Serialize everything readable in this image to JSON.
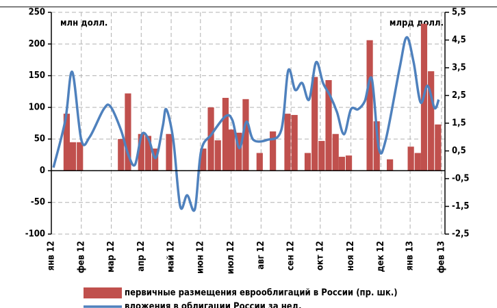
{
  "chart_data": {
    "type": "bar",
    "annotations": [
      "млн долл.",
      "млрд долл."
    ],
    "xlim": [
      0,
      56.5
    ],
    "xticks": [
      {
        "value": 0,
        "label": "янв 12"
      },
      {
        "value": 4.3,
        "label": "фев 12"
      },
      {
        "value": 8.6,
        "label": "мар 12"
      },
      {
        "value": 12.9,
        "label": "апр 12"
      },
      {
        "value": 17.2,
        "label": "май 12"
      },
      {
        "value": 21.4,
        "label": "июн 12"
      },
      {
        "value": 25.8,
        "label": "июл 12"
      },
      {
        "value": 30.1,
        "label": "авг 12"
      },
      {
        "value": 34.4,
        "label": "сен 12"
      },
      {
        "value": 38.6,
        "label": "окт 12"
      },
      {
        "value": 43,
        "label": "ноя 12"
      },
      {
        "value": 47.3,
        "label": "дек 12"
      },
      {
        "value": 51.5,
        "label": "янв 13"
      },
      {
        "value": 56,
        "label": "фев 13"
      }
    ],
    "ylim": [
      -100,
      250
    ],
    "yticks": [
      -100,
      -50,
      0,
      50,
      100,
      150,
      200,
      250
    ],
    "y2lim": [
      -2.5,
      5.5
    ],
    "y2ticks": [
      {
        "value": -2.5,
        "label": "-2,5"
      },
      {
        "value": -1.5,
        "label": "-1,5"
      },
      {
        "value": -0.5,
        "label": "-0,5"
      },
      {
        "value": 0.5,
        "label": "0,5"
      },
      {
        "value": 1.5,
        "label": "1,5"
      },
      {
        "value": 2.5,
        "label": "2,5"
      },
      {
        "value": 3.5,
        "label": "3,5"
      },
      {
        "value": 4.5,
        "label": "4,5"
      },
      {
        "value": 5.5,
        "label": "5,5"
      }
    ],
    "grid": true,
    "series": [
      {
        "name": "первичные размещения еврооблигаций в России (пр. шк.)",
        "color": "#c0504d",
        "x": [
          2.2,
          3.1,
          4.1,
          10,
          11,
          12.9,
          13.9,
          14.9,
          16.9,
          21.8,
          22.9,
          23.9,
          25,
          25.9,
          26.9,
          27.9,
          29.9,
          31.8,
          33.9,
          34.9,
          36.8,
          37.8,
          38.8,
          39.8,
          40.8,
          41.7,
          42.7,
          45.7,
          46.7,
          48.6,
          51.6,
          52.6,
          53.5,
          54.5,
          55.5
        ],
        "values": [
          90,
          45,
          45,
          50,
          122,
          58,
          55,
          35,
          58,
          35,
          100,
          48,
          115,
          65,
          60,
          113,
          28,
          62,
          90,
          88,
          28,
          148,
          47,
          143,
          58,
          22,
          24,
          206,
          78,
          18,
          38,
          28,
          232,
          157,
          73
        ]
      },
      {
        "name": "вложения в облигации России за нед.",
        "color": "#4f81bd",
        "type": "line",
        "axis": "y2",
        "x": [
          0.3,
          2,
          3,
          4.3,
          5.5,
          7.5,
          8.5,
          10,
          11,
          12,
          13,
          14,
          15,
          16,
          16.5,
          17.5,
          18.5,
          19.5,
          20.6,
          21.5,
          23,
          25,
          26,
          27,
          28,
          29,
          31,
          33,
          34,
          35,
          36,
          37,
          38,
          39,
          40,
          41,
          42,
          43,
          44,
          45,
          46,
          47,
          48,
          50,
          51,
          52,
          53,
          54,
          55,
          55.6
        ],
        "values": [
          -0.1,
          1.6,
          3.35,
          0.9,
          1.0,
          2.0,
          2.1,
          1.25,
          0.4,
          0,
          1.1,
          0.9,
          0.25,
          1.4,
          2.0,
          0.9,
          -1.5,
          -1.1,
          -1.6,
          0.5,
          1.1,
          1.75,
          1.6,
          0.6,
          1.55,
          0.9,
          0.9,
          1.25,
          3.4,
          2.7,
          2.95,
          2.35,
          3.7,
          2.95,
          2.5,
          1.9,
          1.1,
          2.0,
          2.0,
          2.3,
          3.1,
          0.6,
          0.9,
          3.5,
          4.6,
          3.7,
          2.25,
          2.85,
          2.05,
          2.35
        ]
      }
    ]
  }
}
